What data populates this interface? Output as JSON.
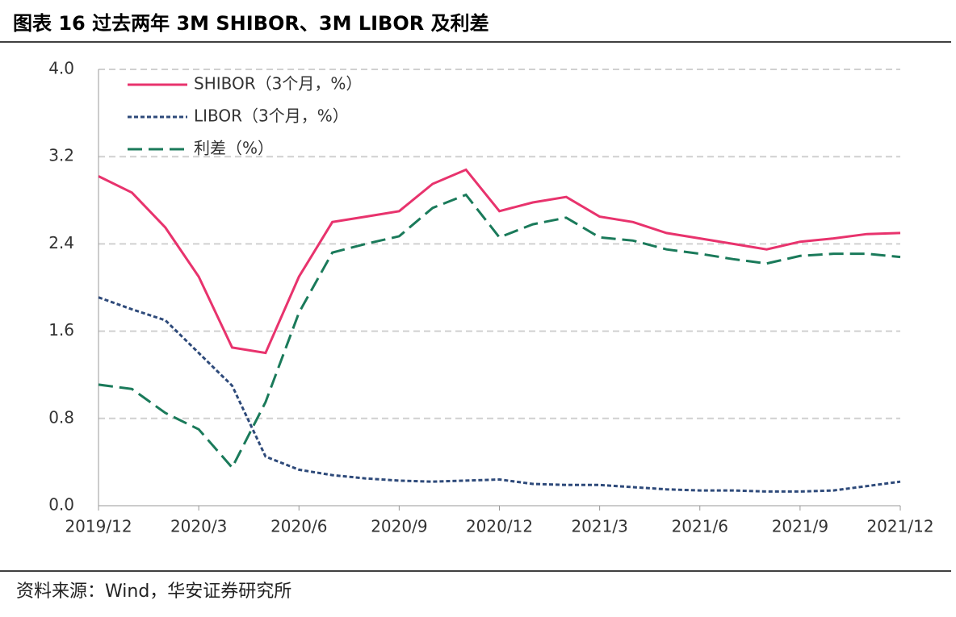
{
  "chart_data": {
    "type": "line",
    "title": "图表  16 过去两年 3M SHIBOR、3M LIBOR 及利差",
    "source": "资料来源：Wind，华安证券研究所",
    "categories": [
      "2019/12",
      null,
      null,
      "2020/3",
      null,
      null,
      "2020/6",
      null,
      null,
      "2020/9",
      null,
      null,
      "2020/12",
      null,
      null,
      "2021/3",
      null,
      null,
      "2021/6",
      null,
      null,
      "2021/9",
      null,
      null,
      "2021/12"
    ],
    "series": [
      {
        "name": "SHIBOR（3个月，%）",
        "color": "#e8336d",
        "line_style": "solid",
        "values": [
          3.02,
          2.87,
          2.55,
          2.1,
          1.45,
          1.4,
          2.1,
          2.6,
          2.65,
          2.7,
          2.95,
          3.08,
          2.7,
          2.78,
          2.83,
          2.65,
          2.6,
          2.5,
          2.45,
          2.4,
          2.35,
          2.42,
          2.45,
          2.49,
          2.5
        ]
      },
      {
        "name": "LIBOR（3个月，%）",
        "color": "#2e4a7a",
        "line_style": "dotted",
        "values": [
          1.91,
          1.8,
          1.7,
          1.4,
          1.1,
          0.45,
          0.33,
          0.28,
          0.25,
          0.23,
          0.22,
          0.23,
          0.24,
          0.2,
          0.19,
          0.19,
          0.17,
          0.15,
          0.14,
          0.14,
          0.13,
          0.13,
          0.14,
          0.18,
          0.22
        ]
      },
      {
        "name": "利差（%）",
        "color": "#1a7a5a",
        "line_style": "dashed",
        "values": [
          1.11,
          1.07,
          0.85,
          0.7,
          0.35,
          0.95,
          1.77,
          2.32,
          2.4,
          2.47,
          2.73,
          2.85,
          2.46,
          2.58,
          2.64,
          2.46,
          2.43,
          2.35,
          2.31,
          2.26,
          2.22,
          2.29,
          2.31,
          2.31,
          2.28
        ]
      }
    ],
    "ylim": [
      0,
      4
    ],
    "yticks": [
      {
        "value": 0,
        "label": "0.0"
      },
      0.8,
      1.6,
      2.4,
      3.2,
      {
        "value": 4,
        "label": "4.0"
      }
    ],
    "grid": true,
    "legend": "upper left"
  }
}
